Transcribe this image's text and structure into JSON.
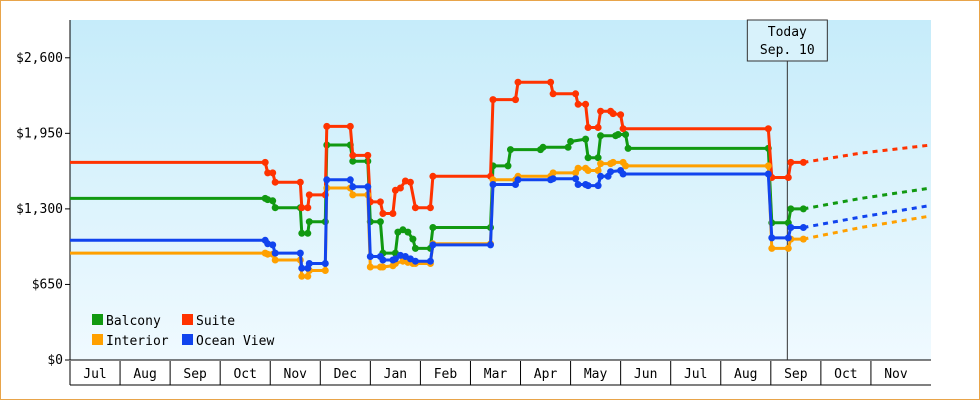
{
  "chart_data": {
    "type": "line",
    "title": "",
    "xlabel": "",
    "ylabel": "",
    "ylim": [
      0,
      2925
    ],
    "y_ticks": [
      {
        "value": 0,
        "label": "$0"
      },
      {
        "value": 650,
        "label": "$650"
      },
      {
        "value": 1300,
        "label": "$1,300"
      },
      {
        "value": 1950,
        "label": "$1,950"
      },
      {
        "value": 2600,
        "label": "$2,600"
      }
    ],
    "xlim": [
      0,
      17.2
    ],
    "months": [
      "Jul",
      "Aug",
      "Sep",
      "Oct",
      "Nov",
      "Dec",
      "Jan",
      "Feb",
      "Mar",
      "Apr",
      "May",
      "Jun",
      "Jul",
      "Aug",
      "Sep",
      "Oct",
      "Nov"
    ],
    "today": {
      "line1": "Today",
      "line2": "Sep. 10",
      "x": 14.33
    },
    "grid": false,
    "legend_position": "bottom-left",
    "series": [
      {
        "name": "Balcony",
        "color": "#119911",
        "points": [
          [
            0,
            1390
          ],
          [
            3.9,
            1390
          ],
          [
            3.95,
            1380
          ],
          [
            4.05,
            1370
          ],
          [
            4.1,
            1310
          ],
          [
            4.6,
            1310
          ],
          [
            4.63,
            1090
          ],
          [
            4.75,
            1090
          ],
          [
            4.78,
            1190
          ],
          [
            5.1,
            1190
          ],
          [
            5.13,
            1850
          ],
          [
            5.6,
            1850
          ],
          [
            5.65,
            1710
          ],
          [
            5.95,
            1710
          ],
          [
            6,
            1190
          ],
          [
            6.2,
            1190
          ],
          [
            6.25,
            920
          ],
          [
            6.5,
            920
          ],
          [
            6.55,
            1100
          ],
          [
            6.65,
            1120
          ],
          [
            6.75,
            1100
          ],
          [
            6.85,
            1040
          ],
          [
            6.9,
            960
          ],
          [
            7.2,
            960
          ],
          [
            7.25,
            1140
          ],
          [
            8.4,
            1140
          ],
          [
            8.45,
            1670
          ],
          [
            8.75,
            1670
          ],
          [
            8.8,
            1810
          ],
          [
            9.4,
            1810
          ],
          [
            9.45,
            1830
          ],
          [
            9.95,
            1830
          ],
          [
            10,
            1880
          ],
          [
            10.3,
            1900
          ],
          [
            10.35,
            1740
          ],
          [
            10.55,
            1740
          ],
          [
            10.6,
            1930
          ],
          [
            10.9,
            1930
          ],
          [
            10.95,
            1940
          ],
          [
            11.1,
            1940
          ],
          [
            11.15,
            1820
          ],
          [
            13.95,
            1820
          ],
          [
            14.02,
            1180
          ],
          [
            14.35,
            1180
          ],
          [
            14.4,
            1300
          ],
          [
            14.65,
            1300
          ]
        ],
        "forecast": [
          [
            14.65,
            1300
          ],
          [
            15.8,
            1390
          ],
          [
            17.2,
            1480
          ]
        ]
      },
      {
        "name": "Suite",
        "color": "#ff3300",
        "points": [
          [
            0,
            1700
          ],
          [
            3.9,
            1700
          ],
          [
            3.95,
            1610
          ],
          [
            4.05,
            1610
          ],
          [
            4.1,
            1530
          ],
          [
            4.6,
            1530
          ],
          [
            4.63,
            1310
          ],
          [
            4.75,
            1310
          ],
          [
            4.78,
            1420
          ],
          [
            5.1,
            1420
          ],
          [
            5.13,
            2010
          ],
          [
            5.6,
            2010
          ],
          [
            5.65,
            1760
          ],
          [
            5.95,
            1760
          ],
          [
            6,
            1360
          ],
          [
            6.2,
            1360
          ],
          [
            6.25,
            1260
          ],
          [
            6.45,
            1260
          ],
          [
            6.5,
            1460
          ],
          [
            6.6,
            1480
          ],
          [
            6.7,
            1540
          ],
          [
            6.8,
            1530
          ],
          [
            6.9,
            1310
          ],
          [
            7.2,
            1310
          ],
          [
            7.25,
            1580
          ],
          [
            8.4,
            1580
          ],
          [
            8.45,
            2240
          ],
          [
            8.9,
            2240
          ],
          [
            8.95,
            2390
          ],
          [
            9.6,
            2390
          ],
          [
            9.65,
            2290
          ],
          [
            10.1,
            2290
          ],
          [
            10.15,
            2200
          ],
          [
            10.3,
            2200
          ],
          [
            10.35,
            2000
          ],
          [
            10.55,
            2000
          ],
          [
            10.6,
            2140
          ],
          [
            10.8,
            2140
          ],
          [
            10.85,
            2120
          ],
          [
            11.0,
            2110
          ],
          [
            11.05,
            1990
          ],
          [
            13.95,
            1990
          ],
          [
            14.02,
            1570
          ],
          [
            14.35,
            1570
          ],
          [
            14.4,
            1700
          ],
          [
            14.65,
            1700
          ]
        ],
        "forecast": [
          [
            14.65,
            1700
          ],
          [
            15.8,
            1780
          ],
          [
            17.2,
            1850
          ]
        ]
      },
      {
        "name": "Interior",
        "color": "#ffa000",
        "points": [
          [
            0,
            920
          ],
          [
            3.9,
            920
          ],
          [
            3.95,
            910
          ],
          [
            4.05,
            910
          ],
          [
            4.1,
            860
          ],
          [
            4.6,
            860
          ],
          [
            4.63,
            720
          ],
          [
            4.75,
            720
          ],
          [
            4.78,
            770
          ],
          [
            5.1,
            770
          ],
          [
            5.13,
            1480
          ],
          [
            5.6,
            1480
          ],
          [
            5.65,
            1420
          ],
          [
            5.95,
            1420
          ],
          [
            6,
            800
          ],
          [
            6.2,
            800
          ],
          [
            6.25,
            800
          ],
          [
            6.45,
            810
          ],
          [
            6.5,
            830
          ],
          [
            6.65,
            850
          ],
          [
            6.75,
            840
          ],
          [
            6.85,
            830
          ],
          [
            6.9,
            830
          ],
          [
            7.2,
            830
          ],
          [
            7.25,
            1000
          ],
          [
            8.4,
            1000
          ],
          [
            8.45,
            1550
          ],
          [
            8.9,
            1550
          ],
          [
            8.95,
            1580
          ],
          [
            9.6,
            1580
          ],
          [
            9.65,
            1610
          ],
          [
            10.1,
            1610
          ],
          [
            10.15,
            1650
          ],
          [
            10.3,
            1650
          ],
          [
            10.35,
            1630
          ],
          [
            10.55,
            1630
          ],
          [
            10.6,
            1690
          ],
          [
            10.8,
            1690
          ],
          [
            10.85,
            1700
          ],
          [
            11.05,
            1700
          ],
          [
            11.1,
            1670
          ],
          [
            13.95,
            1670
          ],
          [
            14.02,
            960
          ],
          [
            14.35,
            960
          ],
          [
            14.4,
            1040
          ],
          [
            14.65,
            1040
          ]
        ],
        "forecast": [
          [
            14.65,
            1040
          ],
          [
            15.8,
            1140
          ],
          [
            17.2,
            1240
          ]
        ]
      },
      {
        "name": "Ocean View",
        "color": "#1144ee",
        "points": [
          [
            0,
            1030
          ],
          [
            3.9,
            1030
          ],
          [
            3.95,
            1000
          ],
          [
            4.05,
            990
          ],
          [
            4.1,
            920
          ],
          [
            4.6,
            920
          ],
          [
            4.63,
            790
          ],
          [
            4.75,
            790
          ],
          [
            4.78,
            830
          ],
          [
            5.1,
            830
          ],
          [
            5.13,
            1550
          ],
          [
            5.6,
            1550
          ],
          [
            5.65,
            1490
          ],
          [
            5.95,
            1490
          ],
          [
            6,
            890
          ],
          [
            6.2,
            890
          ],
          [
            6.25,
            860
          ],
          [
            6.45,
            860
          ],
          [
            6.5,
            870
          ],
          [
            6.6,
            900
          ],
          [
            6.7,
            890
          ],
          [
            6.8,
            870
          ],
          [
            6.9,
            850
          ],
          [
            7.2,
            850
          ],
          [
            7.25,
            990
          ],
          [
            8.4,
            990
          ],
          [
            8.45,
            1510
          ],
          [
            8.9,
            1510
          ],
          [
            8.95,
            1550
          ],
          [
            9.6,
            1550
          ],
          [
            9.65,
            1560
          ],
          [
            10.1,
            1560
          ],
          [
            10.15,
            1510
          ],
          [
            10.3,
            1510
          ],
          [
            10.35,
            1500
          ],
          [
            10.55,
            1500
          ],
          [
            10.6,
            1580
          ],
          [
            10.75,
            1580
          ],
          [
            10.8,
            1620
          ],
          [
            11.0,
            1630
          ],
          [
            11.05,
            1600
          ],
          [
            13.95,
            1600
          ],
          [
            14.02,
            1050
          ],
          [
            14.35,
            1050
          ],
          [
            14.4,
            1140
          ],
          [
            14.65,
            1140
          ]
        ],
        "forecast": [
          [
            14.65,
            1140
          ],
          [
            15.8,
            1230
          ],
          [
            17.2,
            1330
          ]
        ]
      }
    ]
  }
}
